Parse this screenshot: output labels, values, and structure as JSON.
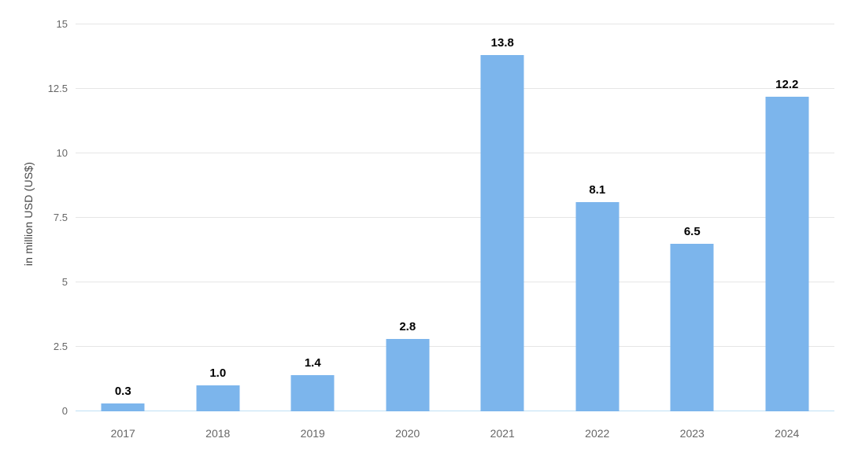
{
  "chart_data": {
    "type": "bar",
    "title": "",
    "xlabel": "",
    "ylabel": "in million USD (US$)",
    "categories": [
      "2017",
      "2018",
      "2019",
      "2020",
      "2021",
      "2022",
      "2023",
      "2024"
    ],
    "values": [
      0.3,
      1.0,
      1.4,
      2.8,
      13.8,
      8.1,
      6.5,
      12.2
    ],
    "value_labels": [
      "0.3",
      "1.0",
      "1.4",
      "2.8",
      "13.8",
      "8.1",
      "6.5",
      "12.2"
    ],
    "ylim": [
      0,
      15
    ],
    "yticks": [
      0,
      2.5,
      5,
      7.5,
      10,
      12.5,
      15
    ],
    "ytick_labels": [
      "0",
      "2.5",
      "5",
      "7.5",
      "10",
      "12.5",
      "15"
    ],
    "grid": true,
    "legend": "none",
    "colors": {
      "bar": "#7cb5ec",
      "gridline": "#e6e6e6",
      "baseline": "#bfe0f5",
      "tick_text": "#666666",
      "value_text": "#000000",
      "axis_title_text": "#444444",
      "background": "#ffffff"
    }
  }
}
